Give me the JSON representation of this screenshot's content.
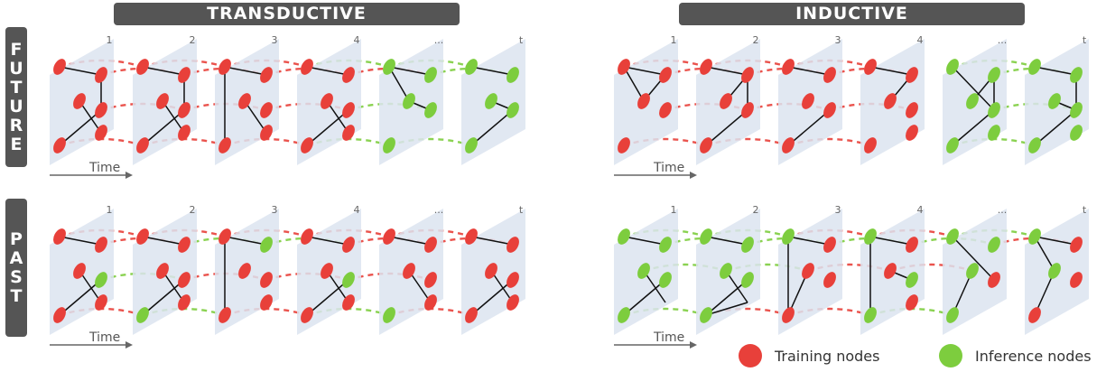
{
  "headers": {
    "left": "TRANSDUCTIVE",
    "right": "INDUCTIVE"
  },
  "row_labels": {
    "top": "FUTURE",
    "bottom": "PAST"
  },
  "time_label": "Time",
  "frame_labels": [
    "1",
    "2",
    "3",
    "4",
    "...",
    "t"
  ],
  "legend": {
    "training": "Training nodes",
    "inference": "Inference nodes"
  },
  "colors": {
    "training": "#e8403a",
    "inference": "#7dcd3e",
    "header": "#555555",
    "plane": "#dce4f0"
  }
}
